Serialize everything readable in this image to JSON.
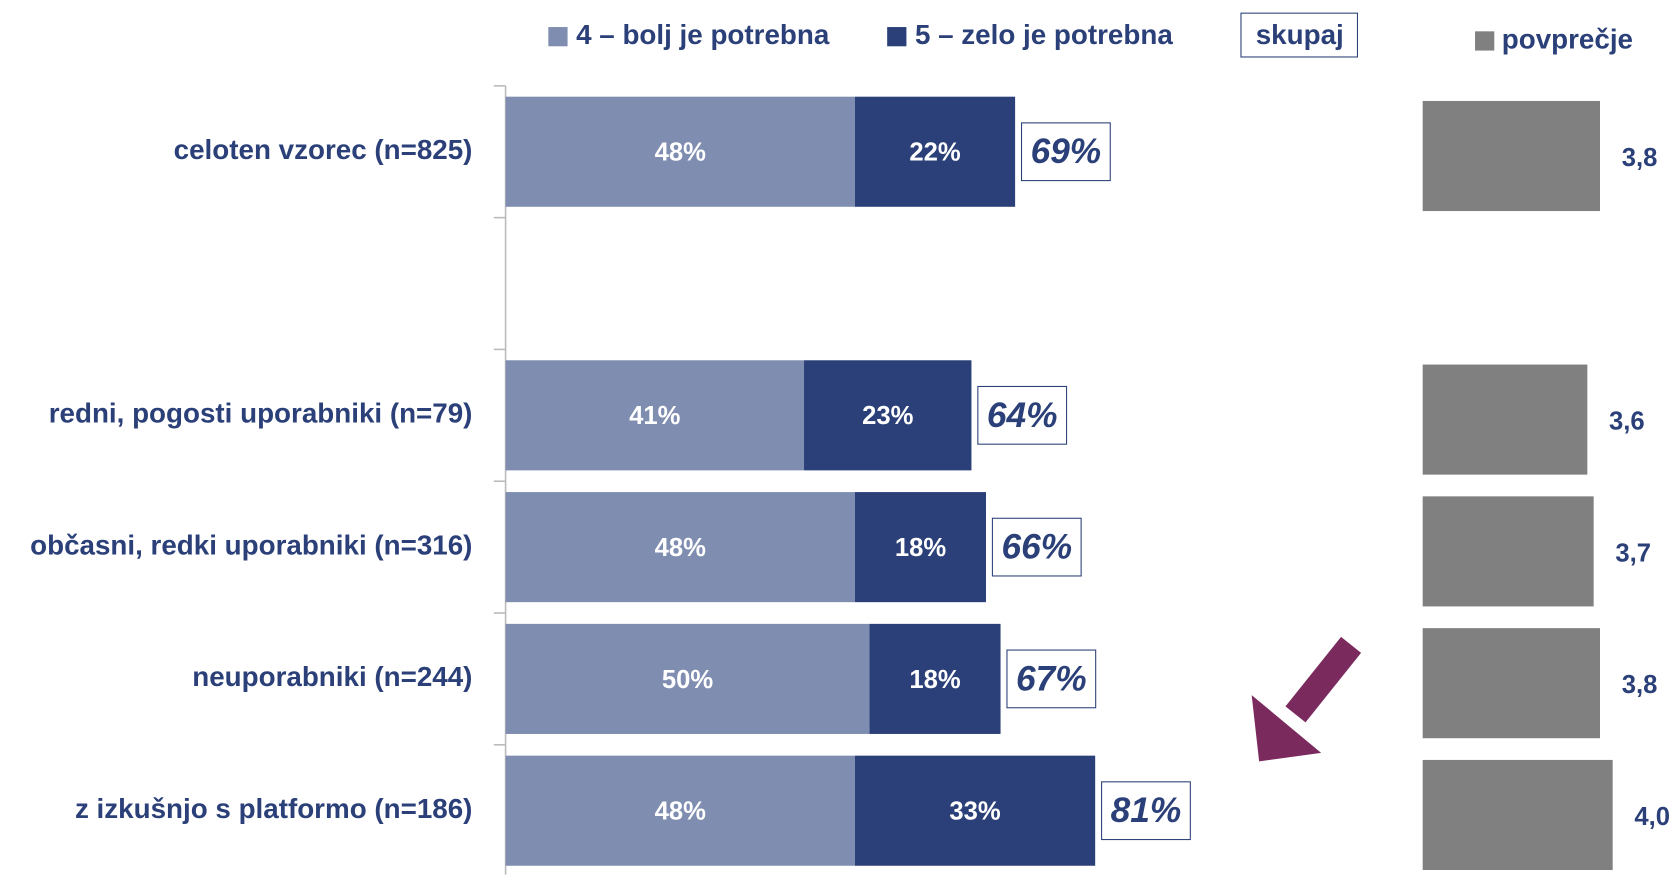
{
  "chart_data": [
    {
      "type": "bar",
      "orientation": "horizontal",
      "stacked": true,
      "categories": [
        "celoten vzorec (n=825)",
        null,
        "redni, pogosti uporabniki (n=79)",
        "občasni, redki uporabniki (n=316)",
        "neuporabniki (n=244)",
        "z izkušnjo s platformo (n=186)"
      ],
      "series": [
        {
          "name": "4 – bolj je potrebna",
          "color": "#7f8db0",
          "values": [
            48,
            null,
            41,
            48,
            50,
            48
          ],
          "value_labels": [
            "48%",
            null,
            "41%",
            "48%",
            "50%",
            "48%"
          ]
        },
        {
          "name": "5 – zelo je potrebna",
          "color": "#2b4078",
          "values": [
            22,
            null,
            23,
            18,
            18,
            33
          ],
          "value_labels": [
            "22%",
            null,
            "23%",
            "18%",
            "18%",
            "33%"
          ]
        }
      ],
      "totals": {
        "name": "skupaj",
        "values": [
          69,
          null,
          64,
          66,
          67,
          81
        ],
        "value_labels": [
          "69%",
          null,
          "64%",
          "66%",
          "67%",
          "81%"
        ]
      },
      "xlim": [
        0,
        100
      ]
    },
    {
      "type": "bar",
      "orientation": "horizontal",
      "series": [
        {
          "name": "povprečje",
          "color": "#808080",
          "values": [
            3.8,
            null,
            3.6,
            3.7,
            3.8,
            4.0
          ],
          "value_labels": [
            "3,8",
            null,
            "3,6",
            "3,7",
            "3,8",
            "4,0"
          ]
        }
      ],
      "xlim": [
        1,
        5
      ]
    }
  ]
}
